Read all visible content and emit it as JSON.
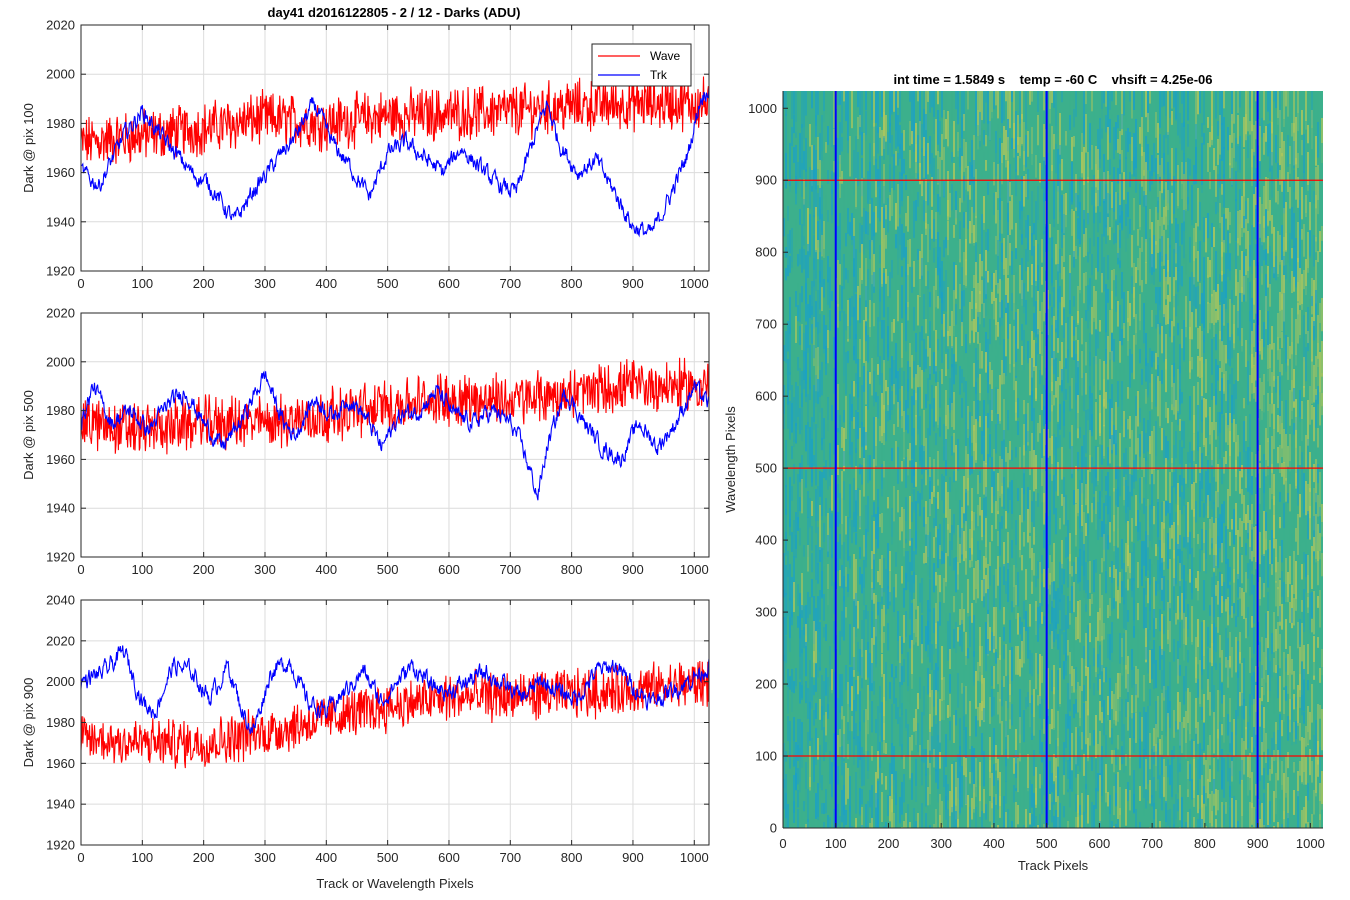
{
  "figure": {
    "title": "day41 d2016122805 - 2 / 12 - Darks (ADU)"
  },
  "chart_data": [
    {
      "type": "line",
      "ylabel": "Dark @ pix 100",
      "xlabel": "",
      "xlim": [
        0,
        1024
      ],
      "ylim": [
        1920,
        2020
      ],
      "xticks": [
        "0",
        "100",
        "200",
        "300",
        "400",
        "500",
        "600",
        "700",
        "800",
        "900",
        "1000"
      ],
      "yticks": [
        "1920",
        "1940",
        "1960",
        "1980",
        "2000",
        "2020"
      ],
      "grid": true,
      "legend": "top-right",
      "series": [
        {
          "name": "Wave",
          "color": "#ff0000",
          "kind": "noisy",
          "anchors": [
            [
              0,
              1972
            ],
            [
              100,
              1975
            ],
            [
              200,
              1978
            ],
            [
              300,
              1982
            ],
            [
              400,
              1980
            ],
            [
              500,
              1983
            ],
            [
              600,
              1984
            ],
            [
              700,
              1985
            ],
            [
              800,
              1987
            ],
            [
              900,
              1988
            ],
            [
              1024,
              1988
            ]
          ],
          "noise": 9
        },
        {
          "name": "Trk",
          "color": "#0000ff",
          "kind": "smooth",
          "anchors": [
            [
              0,
              1960
            ],
            [
              30,
              1955
            ],
            [
              70,
              1975
            ],
            [
              100,
              1985
            ],
            [
              140,
              1972
            ],
            [
              180,
              1960
            ],
            [
              210,
              1955
            ],
            [
              250,
              1940
            ],
            [
              280,
              1952
            ],
            [
              310,
              1962
            ],
            [
              350,
              1975
            ],
            [
              380,
              1988
            ],
            [
              410,
              1972
            ],
            [
              440,
              1962
            ],
            [
              470,
              1950
            ],
            [
              500,
              1968
            ],
            [
              530,
              1972
            ],
            [
              560,
              1966
            ],
            [
              590,
              1960
            ],
            [
              620,
              1970
            ],
            [
              650,
              1962
            ],
            [
              680,
              1955
            ],
            [
              710,
              1952
            ],
            [
              740,
              1975
            ],
            [
              760,
              1988
            ],
            [
              780,
              1972
            ],
            [
              810,
              1960
            ],
            [
              840,
              1965
            ],
            [
              870,
              1952
            ],
            [
              900,
              1938
            ],
            [
              930,
              1935
            ],
            [
              960,
              1950
            ],
            [
              990,
              1968
            ],
            [
              1010,
              1990
            ],
            [
              1024,
              1995
            ]
          ],
          "noise": 4
        }
      ]
    },
    {
      "type": "line",
      "ylabel": "Dark @ pix 500",
      "xlabel": "",
      "xlim": [
        0,
        1024
      ],
      "ylim": [
        1920,
        2020
      ],
      "xticks": [
        "0",
        "100",
        "200",
        "300",
        "400",
        "500",
        "600",
        "700",
        "800",
        "900",
        "1000"
      ],
      "yticks": [
        "1920",
        "1940",
        "1960",
        "1980",
        "2000",
        "2020"
      ],
      "grid": true,
      "legend": "",
      "series": [
        {
          "name": "Wave",
          "color": "#ff0000",
          "kind": "noisy",
          "anchors": [
            [
              0,
              1975
            ],
            [
              100,
              1972
            ],
            [
              200,
              1975
            ],
            [
              300,
              1975
            ],
            [
              400,
              1978
            ],
            [
              500,
              1982
            ],
            [
              600,
              1985
            ],
            [
              700,
              1984
            ],
            [
              800,
              1987
            ],
            [
              900,
              1990
            ],
            [
              1024,
              1990
            ]
          ],
          "noise": 9
        },
        {
          "name": "Trk",
          "color": "#0000ff",
          "kind": "smooth",
          "anchors": [
            [
              0,
              1975
            ],
            [
              20,
              1990
            ],
            [
              50,
              1975
            ],
            [
              80,
              1980
            ],
            [
              110,
              1972
            ],
            [
              140,
              1982
            ],
            [
              170,
              1988
            ],
            [
              200,
              1975
            ],
            [
              230,
              1965
            ],
            [
              260,
              1975
            ],
            [
              300,
              1995
            ],
            [
              330,
              1975
            ],
            [
              350,
              1970
            ],
            [
              380,
              1985
            ],
            [
              410,
              1978
            ],
            [
              440,
              1985
            ],
            [
              470,
              1975
            ],
            [
              490,
              1965
            ],
            [
              520,
              1978
            ],
            [
              550,
              1980
            ],
            [
              580,
              1988
            ],
            [
              610,
              1978
            ],
            [
              640,
              1975
            ],
            [
              670,
              1980
            ],
            [
              700,
              1975
            ],
            [
              720,
              1965
            ],
            [
              745,
              1945
            ],
            [
              760,
              1965
            ],
            [
              790,
              1988
            ],
            [
              820,
              1975
            ],
            [
              850,
              1965
            ],
            [
              880,
              1960
            ],
            [
              910,
              1975
            ],
            [
              940,
              1965
            ],
            [
              970,
              1975
            ],
            [
              1000,
              1990
            ],
            [
              1024,
              1982
            ]
          ],
          "noise": 4
        }
      ]
    },
    {
      "type": "line",
      "ylabel": "Dark @ pix 900",
      "xlabel": "Track or Wavelength Pixels",
      "xlim": [
        0,
        1024
      ],
      "ylim": [
        1920,
        2040
      ],
      "xticks": [
        "0",
        "100",
        "200",
        "300",
        "400",
        "500",
        "600",
        "700",
        "800",
        "900",
        "1000"
      ],
      "yticks": [
        "1920",
        "1940",
        "1960",
        "1980",
        "2000",
        "2020",
        "2040"
      ],
      "grid": true,
      "legend": "",
      "series": [
        {
          "name": "Wave",
          "color": "#ff0000",
          "kind": "noisy",
          "anchors": [
            [
              0,
              1972
            ],
            [
              100,
              1970
            ],
            [
              200,
              1970
            ],
            [
              300,
              1975
            ],
            [
              400,
              1982
            ],
            [
              500,
              1988
            ],
            [
              600,
              1992
            ],
            [
              700,
              1993
            ],
            [
              800,
              1994
            ],
            [
              900,
              1996
            ],
            [
              1024,
              2000
            ]
          ],
          "noise": 10
        },
        {
          "name": "Trk",
          "color": "#0000ff",
          "kind": "smooth",
          "anchors": [
            [
              0,
              2000
            ],
            [
              40,
              2005
            ],
            [
              70,
              2015
            ],
            [
              100,
              1990
            ],
            [
              120,
              1985
            ],
            [
              150,
              2008
            ],
            [
              180,
              2005
            ],
            [
              210,
              1992
            ],
            [
              240,
              2008
            ],
            [
              260,
              1988
            ],
            [
              280,
              1975
            ],
            [
              310,
              2005
            ],
            [
              340,
              2010
            ],
            [
              370,
              1990
            ],
            [
              400,
              1985
            ],
            [
              430,
              1995
            ],
            [
              460,
              2005
            ],
            [
              490,
              1990
            ],
            [
              510,
              1998
            ],
            [
              540,
              2008
            ],
            [
              570,
              1998
            ],
            [
              600,
              1995
            ],
            [
              630,
              2000
            ],
            [
              660,
              2005
            ],
            [
              690,
              1998
            ],
            [
              720,
              1992
            ],
            [
              750,
              2000
            ],
            [
              780,
              1995
            ],
            [
              810,
              1992
            ],
            [
              840,
              2005
            ],
            [
              870,
              2008
            ],
            [
              900,
              1998
            ],
            [
              930,
              1990
            ],
            [
              960,
              1995
            ],
            [
              990,
              2000
            ],
            [
              1024,
              2008
            ]
          ],
          "noise": 5
        }
      ]
    },
    {
      "type": "heatmap",
      "title": "int time = 1.5849 s    temp = -60 C    vhsift = 4.25e-06",
      "xlabel": "Track Pixels",
      "ylabel": "Wavelength Pixels",
      "xlim": [
        0,
        1024
      ],
      "ylim": [
        0,
        1024
      ],
      "xticks": [
        "0",
        "100",
        "200",
        "300",
        "400",
        "500",
        "600",
        "700",
        "800",
        "900",
        "1000"
      ],
      "yticks": [
        "0",
        "100",
        "200",
        "300",
        "400",
        "500",
        "600",
        "700",
        "800",
        "900",
        "1000"
      ],
      "markers": {
        "vertical_lines": {
          "color": "#0000ff",
          "x": [
            100,
            500,
            900
          ]
        },
        "horizontal_lines": {
          "color": "#ff0000",
          "y": [
            100,
            500,
            900
          ]
        }
      },
      "colormap": {
        "low": "#1aa0c8",
        "mid": "#3cb08c",
        "high": "#b4c85a"
      }
    }
  ]
}
